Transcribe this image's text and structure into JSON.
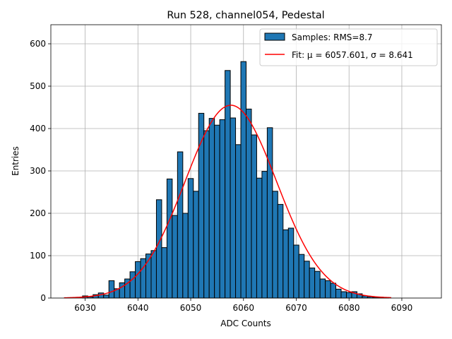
{
  "chart_data": {
    "type": "bar",
    "title": "Run 528, channel054, Pedestal",
    "xlabel": "ADC Counts",
    "ylabel": "Entries",
    "xlim": [
      6023.5,
      6097.5
    ],
    "ylim": [
      0,
      645
    ],
    "xticks": [
      6030,
      6040,
      6050,
      6060,
      6070,
      6080,
      6090
    ],
    "yticks": [
      0,
      100,
      200,
      300,
      400,
      500,
      600
    ],
    "grid": true,
    "legend_position": "top-right",
    "colors": {
      "bar_fill": "#1f77b4",
      "bar_edge": "#000000",
      "fit_line": "#ff0000",
      "grid": "#b0b0b0"
    },
    "bin_width": 1,
    "bins": [
      6030,
      6031,
      6032,
      6033,
      6034,
      6035,
      6036,
      6037,
      6038,
      6039,
      6040,
      6041,
      6042,
      6043,
      6044,
      6045,
      6046,
      6047,
      6048,
      6049,
      6050,
      6051,
      6052,
      6053,
      6054,
      6055,
      6056,
      6057,
      6058,
      6059,
      6060,
      6061,
      6062,
      6063,
      6064,
      6065,
      6066,
      6067,
      6068,
      6069,
      6070,
      6071,
      6072,
      6073,
      6074,
      6075,
      6076,
      6077,
      6078,
      6079,
      6080,
      6081,
      6082,
      6083,
      6084,
      6085,
      6086,
      6087
    ],
    "counts": [
      5,
      3,
      8,
      12,
      7,
      41,
      22,
      36,
      45,
      62,
      86,
      93,
      104,
      112,
      232,
      119,
      281,
      195,
      345,
      200,
      282,
      252,
      436,
      395,
      424,
      408,
      421,
      537,
      425,
      362,
      558,
      446,
      385,
      283,
      299,
      402,
      252,
      221,
      161,
      165,
      125,
      103,
      87,
      71,
      63,
      45,
      41,
      35,
      21,
      15,
      13,
      15,
      10,
      5,
      3,
      2,
      2,
      1
    ],
    "series": [
      {
        "name": "Samples: RMS=8.7",
        "kind": "histogram"
      },
      {
        "name": "Fit: μ = 6057.601, σ = 8.641",
        "kind": "gaussian_fit",
        "mu": 6057.601,
        "sigma": 8.641,
        "amplitude": 455,
        "x_range": [
          6026,
          6088
        ]
      }
    ]
  }
}
